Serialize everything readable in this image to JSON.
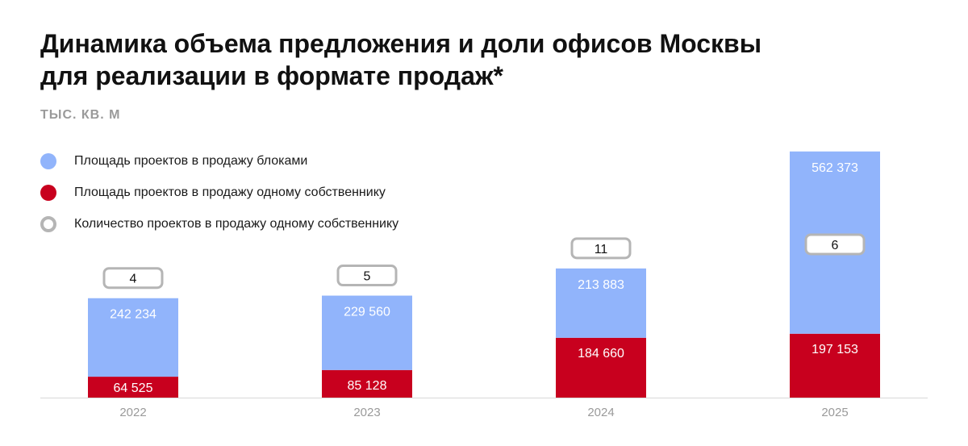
{
  "title_line1": "Динамика объема предложения и доли офисов Москвы",
  "title_line2": "для реализации в формате продаж*",
  "unit_label": "ТЫС. КВ. М",
  "legend": [
    {
      "label": "Площадь проектов в продажу блоками",
      "color": "#91b4fb",
      "style": "filled"
    },
    {
      "label": "Площадь проектов в продажу одному собственнику",
      "color": "#c8001e",
      "style": "filled"
    },
    {
      "label": "Количество проектов в продажу одному собственнику",
      "color": "#b5b5b5",
      "style": "ring"
    }
  ],
  "chart_data": {
    "type": "bar",
    "stacked": true,
    "categories": [
      "2022",
      "2023",
      "2024",
      "2025"
    ],
    "series": [
      {
        "name": "Площадь проектов в продажу одному собственнику",
        "color": "#c8001e",
        "values": [
          64525,
          85128,
          184660,
          197153
        ],
        "labels": [
          "64 525",
          "85 128",
          "184 660",
          "197 153"
        ]
      },
      {
        "name": "Площадь проектов в продажу блоками",
        "color": "#91b4fb",
        "values": [
          242234,
          229560,
          213883,
          562373
        ],
        "labels": [
          "242 234",
          "229 560",
          "213 883",
          "562 373"
        ]
      }
    ],
    "project_counts": [
      4,
      5,
      11,
      6
    ],
    "axis_color": "#d9d9d9",
    "tick_color": "#9a9a9a",
    "grid": false
  }
}
